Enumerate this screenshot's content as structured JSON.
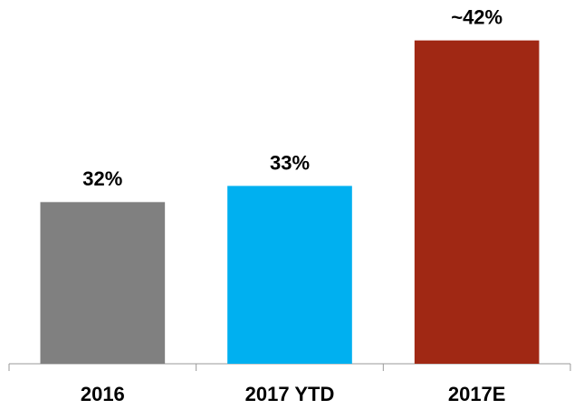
{
  "chart_data": {
    "type": "bar",
    "categories": [
      "2016",
      "2017 YTD",
      "2017E"
    ],
    "values": [
      32,
      33,
      42
    ],
    "value_labels": [
      "32%",
      "33%",
      "~42%"
    ],
    "colors": [
      "#808080",
      "#00b0f0",
      "#a02814"
    ],
    "ylim": [
      22,
      44.5
    ]
  }
}
